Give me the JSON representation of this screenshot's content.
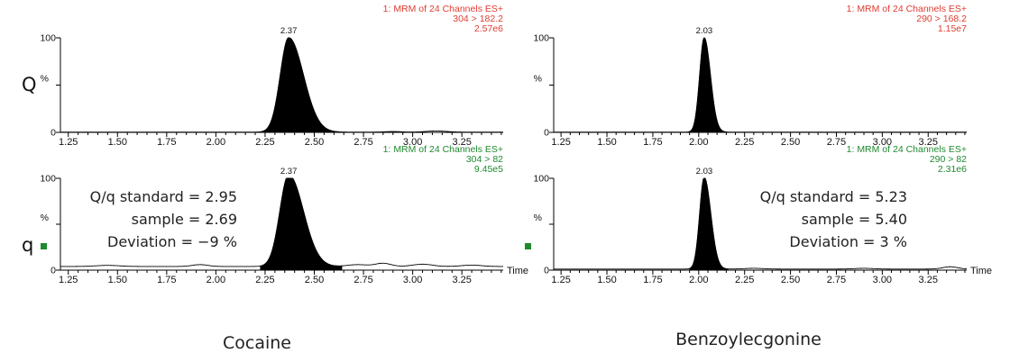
{
  "colors": {
    "quant": "#e03c31",
    "qual": "#1f8a2e",
    "peak": "#000000",
    "axis": "#000000"
  },
  "row_labels": {
    "quantifier": "Q",
    "qualifier": "q"
  },
  "compounds": {
    "left": "Cocaine",
    "right": "Benzoylecgonine"
  },
  "legend_icon": "green-square-icon",
  "chart_data": [
    {
      "id": "cocaine-Q",
      "type": "area",
      "color_key": "quant",
      "x_ticks": [
        "1.25",
        "1.50",
        "1.75",
        "2.00",
        "2.25",
        "2.50",
        "2.75",
        "3.00",
        "3.25"
      ],
      "xlim": [
        1.21,
        3.46
      ],
      "ylim": [
        0,
        100
      ],
      "y_ticks": [
        "0",
        "100"
      ],
      "ylabel": "%",
      "xlabel": "",
      "header": [
        "1: MRM of 24 Channels ES+",
        "304 > 182.2",
        "2.57e6"
      ],
      "peak_label": "2.37",
      "baseline": 0.3,
      "peaks": [
        {
          "rt": 2.37,
          "height": 100,
          "left_sigma": 0.043,
          "right_sigma": 0.075
        }
      ],
      "bumps": [
        {
          "rt": 2.9,
          "h": 0.6,
          "w": 0.04
        },
        {
          "rt": 3.12,
          "h": 1.2,
          "w": 0.05
        }
      ],
      "annotation": []
    },
    {
      "id": "cocaine-q",
      "type": "area",
      "color_key": "qual",
      "x_ticks": [
        "1.25",
        "1.50",
        "1.75",
        "2.00",
        "2.25",
        "2.50",
        "2.75",
        "3.00",
        "3.25"
      ],
      "xlim": [
        1.21,
        3.46
      ],
      "ylim": [
        0,
        100
      ],
      "y_ticks": [
        "0",
        "100"
      ],
      "ylabel": "%",
      "xlabel": "Time",
      "header": [
        "1: MRM of 24 Channels ES+",
        "304 > 82",
        "9.45e5"
      ],
      "peak_label": "2.37",
      "baseline": 4,
      "peaks": [
        {
          "rt": 2.37,
          "height": 100,
          "left_sigma": 0.045,
          "right_sigma": 0.075
        }
      ],
      "bumps": [
        {
          "rt": 1.45,
          "h": 1.2,
          "w": 0.06
        },
        {
          "rt": 1.92,
          "h": 2,
          "w": 0.04
        },
        {
          "rt": 2.72,
          "h": 2,
          "w": 0.05
        },
        {
          "rt": 2.85,
          "h": 3.5,
          "w": 0.04
        },
        {
          "rt": 3.05,
          "h": 2.5,
          "w": 0.05
        },
        {
          "rt": 3.3,
          "h": 1.5,
          "w": 0.05
        }
      ],
      "annotation": [
        "Q/q standard = 2.95",
        "sample = 2.69",
        "Deviation = −9 %"
      ]
    },
    {
      "id": "benzoylecgonine-Q",
      "type": "area",
      "color_key": "quant",
      "x_ticks": [
        "1.25",
        "1.50",
        "1.75",
        "2.00",
        "2.25",
        "2.50",
        "2.75",
        "3.00",
        "3.25"
      ],
      "xlim": [
        1.21,
        3.46
      ],
      "ylim": [
        0,
        100
      ],
      "y_ticks": [
        "0",
        "100"
      ],
      "ylabel": "%",
      "xlabel": "",
      "header": [
        "1: MRM of 24 Channels ES+",
        "290 > 168.2",
        "1.15e7"
      ],
      "peak_label": "2.03",
      "baseline": 0.3,
      "peaks": [
        {
          "rt": 2.03,
          "height": 100,
          "left_sigma": 0.025,
          "right_sigma": 0.034
        }
      ],
      "bumps": [],
      "annotation": []
    },
    {
      "id": "benzoylecgonine-q",
      "type": "area",
      "color_key": "qual",
      "x_ticks": [
        "1.25",
        "1.50",
        "1.75",
        "2.00",
        "2.25",
        "2.50",
        "2.75",
        "3.00",
        "3.25"
      ],
      "xlim": [
        1.21,
        3.46
      ],
      "ylim": [
        0,
        100
      ],
      "y_ticks": [
        "0",
        "100"
      ],
      "ylabel": "%",
      "xlabel": "Time",
      "header": [
        "1: MRM of 24 Channels ES+",
        "290 > 82",
        "2.31e6"
      ],
      "peak_label": "2.03",
      "baseline": 1.2,
      "peaks": [
        {
          "rt": 2.03,
          "height": 100,
          "left_sigma": 0.025,
          "right_sigma": 0.036
        }
      ],
      "bumps": [
        {
          "rt": 2.3,
          "h": 0.8,
          "w": 0.05
        },
        {
          "rt": 2.9,
          "h": 0.8,
          "w": 0.05
        },
        {
          "rt": 3.37,
          "h": 2.5,
          "w": 0.04
        }
      ],
      "annotation": [
        "Q/q standard = 5.23",
        "sample = 5.40",
        "Deviation = 3 %"
      ]
    }
  ]
}
